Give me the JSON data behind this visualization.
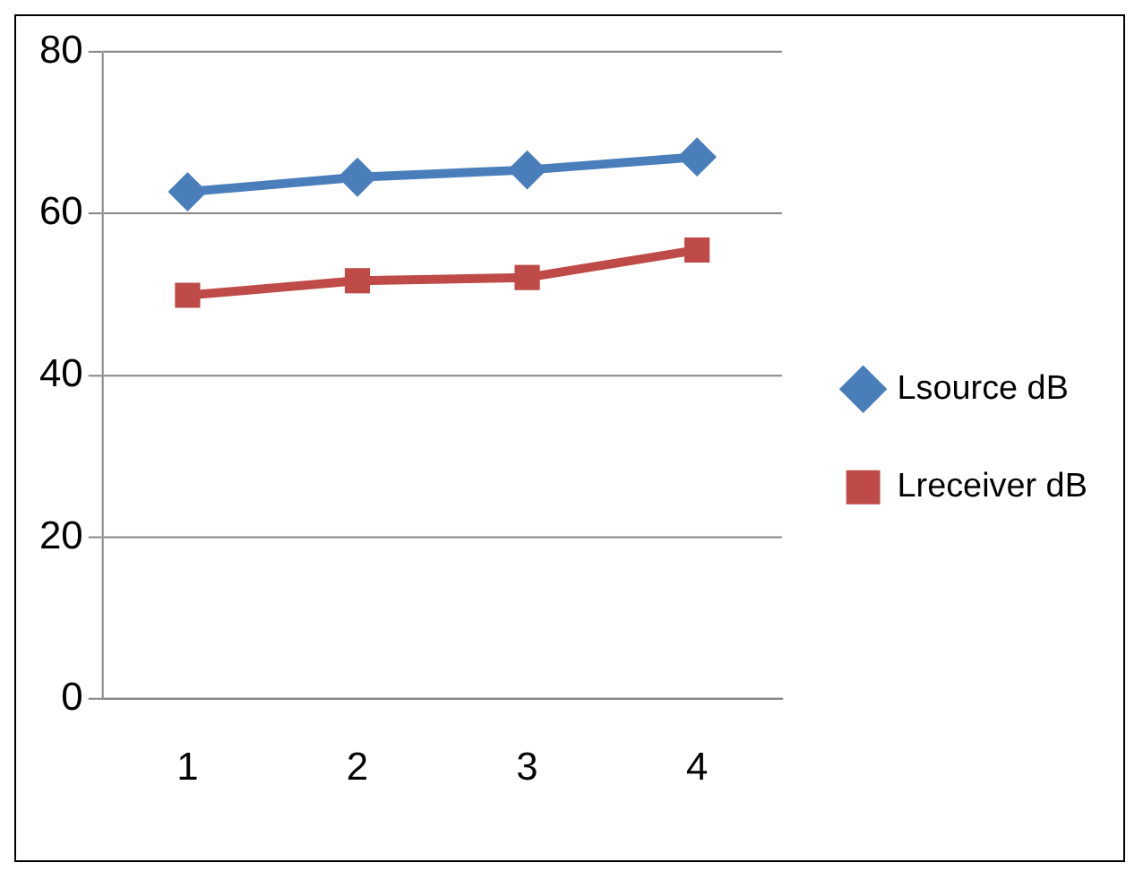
{
  "chart_data": {
    "type": "line",
    "categories": [
      "1",
      "2",
      "3",
      "4"
    ],
    "series": [
      {
        "name": "Lsource dB",
        "color": "#4a7ebb",
        "values": [
          62.7,
          64.5,
          65.4,
          67.0
        ],
        "marker": "diamond"
      },
      {
        "name": "Lreceiver dB",
        "color": "#be4b48",
        "values": [
          49.9,
          51.7,
          52.1,
          55.5
        ],
        "marker": "square"
      }
    ],
    "ylim": [
      0,
      80
    ],
    "yticks": [
      0,
      20,
      40,
      60,
      80
    ],
    "grid": "y",
    "legend": "right"
  }
}
